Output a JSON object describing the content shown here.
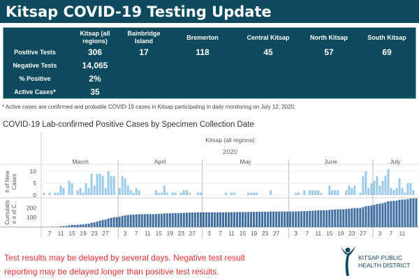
{
  "header": {
    "title": "Kitsap COVID-19 Testing Update"
  },
  "table": {
    "columns": [
      "Kitsap (all regions)",
      "Bainbridge Island",
      "Bremerton",
      "Central Kitsap",
      "North Kitsap",
      "South Kitsap"
    ],
    "rows": [
      {
        "label": "Positive Tests",
        "values": [
          "306",
          "17",
          "118",
          "45",
          "57",
          "69"
        ]
      },
      {
        "label": "Negative Tests",
        "values": [
          "14,065"
        ]
      },
      {
        "label": "% Positive",
        "values": [
          "2%"
        ]
      },
      {
        "label": "Active Cases*",
        "values": [
          "35"
        ]
      }
    ]
  },
  "footnote": "* Active cases are confirmed and probable COVID-19 cases in Kitsap participating in daily monitoring on July 12, 2020.",
  "chart_title": "COVID-19 Lab-confirmed Positive Cases by Specimen Collection Date",
  "chart_data": {
    "type": "bar",
    "region_label": "Kitsap (all regions)",
    "year_label": "2020",
    "months": [
      "March",
      "April",
      "May",
      "June",
      "July"
    ],
    "x_range": [
      "2020-03-05",
      "2020-07-12"
    ],
    "x_tick_labels": [
      "7",
      "11",
      "15",
      "19",
      "23",
      "27",
      "3",
      "7",
      "11",
      "15",
      "19",
      "23",
      "27",
      "3",
      "7",
      "11",
      "15",
      "19",
      "23",
      "27",
      "3",
      "7",
      "11",
      "15",
      "19",
      "23",
      "27",
      "3",
      "7",
      "11"
    ],
    "panels": [
      {
        "ylabel": "# of New Cases",
        "yticks": [
          0,
          5,
          10
        ],
        "color": "#9ccbe8"
      },
      {
        "ylabel": "Cumulative # of C..",
        "yticks": [
          100,
          200
        ],
        "color": "#3f6fa0"
      }
    ],
    "new_cases": [
      1,
      0,
      1,
      0,
      1,
      1,
      4,
      3,
      0,
      6,
      5,
      0,
      2,
      3,
      1,
      5,
      3,
      9,
      4,
      9,
      9,
      8,
      3,
      10,
      8,
      8,
      0,
      3,
      8,
      7,
      4,
      2,
      1,
      3,
      2,
      0,
      0,
      0,
      0,
      0,
      2,
      1,
      1,
      4,
      1,
      0,
      1,
      1,
      0,
      1,
      2,
      2,
      1,
      0,
      0,
      1,
      1,
      0,
      0,
      0,
      0,
      0,
      0,
      0,
      0,
      1,
      0,
      1,
      1,
      0,
      0,
      0,
      0,
      1,
      1,
      1,
      1,
      0,
      0,
      0,
      0,
      2,
      0,
      0,
      0,
      0,
      0,
      0,
      0,
      0,
      1,
      1,
      0,
      2,
      0,
      2,
      2,
      2,
      2,
      1,
      0,
      0,
      4,
      2,
      2,
      2,
      0,
      0,
      2,
      4,
      3,
      4,
      0,
      1,
      8,
      10,
      3,
      5,
      6,
      8,
      4,
      6,
      8,
      11,
      3,
      2,
      3,
      7,
      3,
      1,
      5,
      5,
      2,
      0
    ]
  },
  "note": [
    "Test results may be delayed by several days. Negative test result",
    "reporting may be delayed longer than positive test results."
  ],
  "logo": {
    "text": [
      "KITSAP PUBLIC",
      "HEALTH DISTRICT"
    ]
  }
}
